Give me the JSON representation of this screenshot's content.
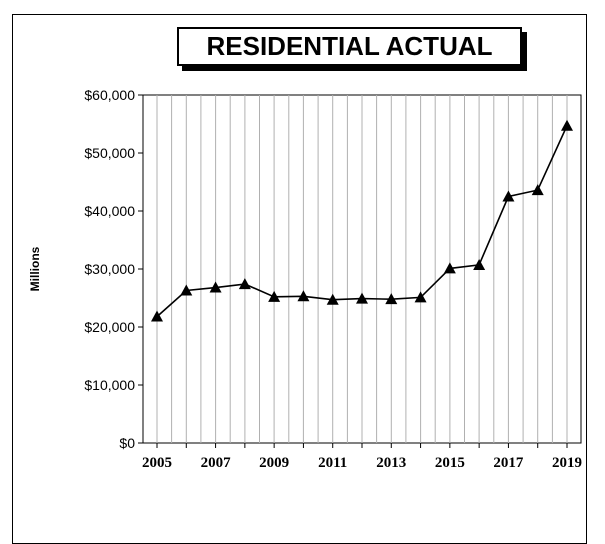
{
  "chart_data": {
    "type": "line",
    "title": "RESIDENTIAL ACTUAL",
    "ylabel": "Millions",
    "xlabel": "",
    "ylim": [
      0,
      60000
    ],
    "yticks": [
      0,
      10000,
      20000,
      30000,
      40000,
      50000,
      60000
    ],
    "ytick_labels": [
      "$0",
      "$10,000",
      "$20,000",
      "$30,000",
      "$40,000",
      "$50,000",
      "$60,000"
    ],
    "xtick_labels": [
      "2005",
      "2007",
      "2009",
      "2011",
      "2013",
      "2015",
      "2017",
      "2019"
    ],
    "grid": "vertical",
    "marker": "triangle",
    "series": [
      {
        "x": [
          2005,
          2006,
          2007,
          2008,
          2009,
          2010,
          2011,
          2012,
          2013,
          2014,
          2015,
          2016,
          2017,
          2018,
          2019
        ],
        "values": [
          21800,
          26300,
          26800,
          27400,
          25200,
          25300,
          24700,
          24900,
          24800,
          25100,
          30100,
          30700,
          42500,
          43600,
          54700
        ]
      }
    ]
  }
}
